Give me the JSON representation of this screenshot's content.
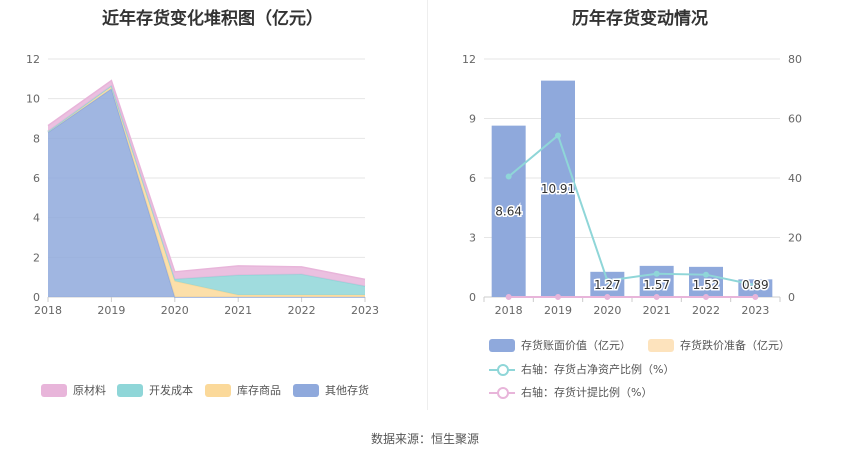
{
  "source_text": "数据来源：恒生聚源",
  "chart_data": [
    {
      "type": "area",
      "title": "近年存货变化堆积图（亿元）",
      "x": [
        "2018",
        "2019",
        "2020",
        "2021",
        "2022",
        "2023"
      ],
      "ylim": [
        0,
        12
      ],
      "yticks": [
        0,
        2,
        4,
        6,
        8,
        10,
        12
      ],
      "stacked": true,
      "series": [
        {
          "name": "其他存货",
          "color": "#8fa9dc",
          "values": [
            8.3,
            10.5,
            0.0,
            0.0,
            0.0,
            0.0
          ]
        },
        {
          "name": "库存商品",
          "color": "#fbd99a",
          "values": [
            0.05,
            0.15,
            0.8,
            0.1,
            0.1,
            0.1
          ]
        },
        {
          "name": "开发成本",
          "color": "#8fd6d8",
          "values": [
            0.0,
            0.0,
            0.1,
            1.0,
            1.05,
            0.45
          ]
        },
        {
          "name": "原材料",
          "color": "#e8b5da",
          "values": [
            0.29,
            0.26,
            0.37,
            0.47,
            0.37,
            0.34
          ]
        }
      ],
      "legend_order": [
        "原材料",
        "开发成本",
        "库存商品",
        "其他存货"
      ],
      "legend_position": "bottom",
      "grid": true
    },
    {
      "type": "bar",
      "title": "历年存货变动情况",
      "categories": [
        "2018",
        "2019",
        "2020",
        "2021",
        "2022",
        "2023"
      ],
      "ylim": [
        0,
        12
      ],
      "yticks": [
        0,
        3,
        6,
        9,
        12
      ],
      "y2lim": [
        0,
        80
      ],
      "y2ticks": [
        0,
        20,
        40,
        60,
        80
      ],
      "series": [
        {
          "name": "存货账面价值（亿元）",
          "kind": "bar",
          "axis": "left",
          "color": "#8fa9dc",
          "values": [
            8.64,
            10.91,
            1.27,
            1.57,
            1.52,
            0.89
          ],
          "labels": [
            "8.64",
            "10.91",
            "1.27",
            "1.57",
            "1.52",
            "0.89"
          ]
        },
        {
          "name": "存货跌价准备（亿元）",
          "kind": "bar",
          "axis": "left",
          "color": "#fde3bd",
          "values": [
            0,
            0,
            0,
            0,
            0,
            0
          ]
        },
        {
          "name": "右轴：存货占净资产比例（%）",
          "kind": "line",
          "axis": "right",
          "color": "#8fd6d8",
          "values": [
            40.5,
            54.3,
            5.5,
            7.8,
            7.5,
            4.0
          ]
        },
        {
          "name": "右轴：存货计提比例（%）",
          "kind": "line",
          "axis": "right",
          "color": "#e8b5da",
          "values": [
            0,
            0,
            0,
            0,
            0,
            0
          ]
        }
      ],
      "legend_position": "bottom",
      "grid": true
    }
  ]
}
